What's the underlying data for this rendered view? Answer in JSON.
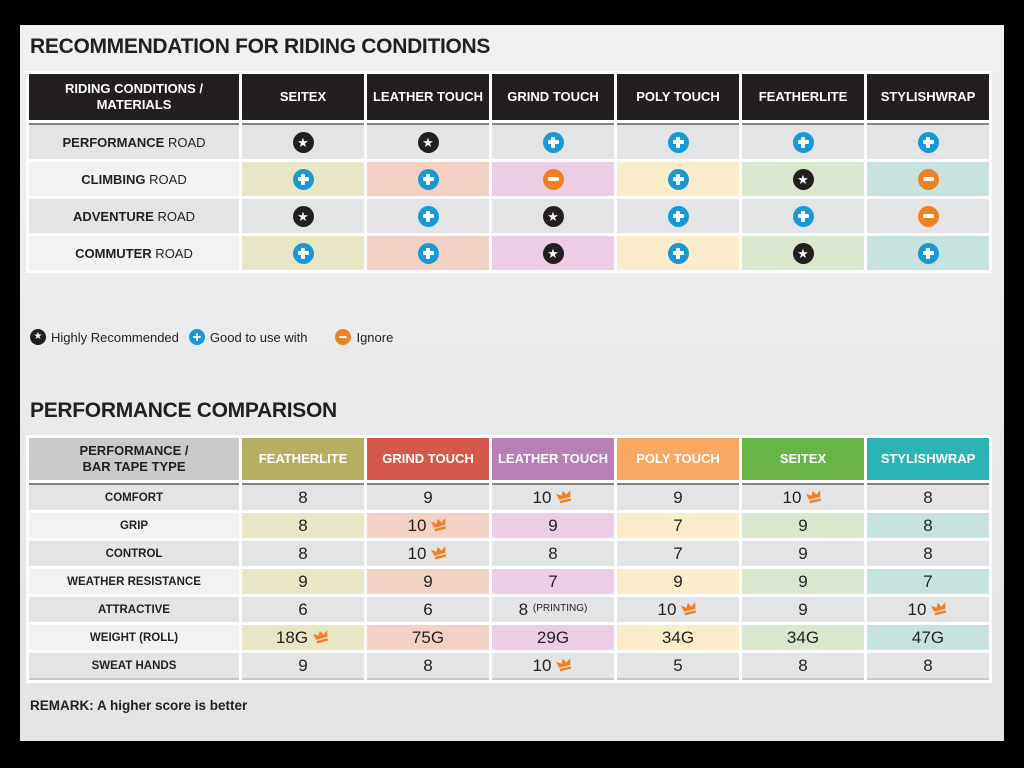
{
  "colors": {
    "accent_blue": "#1899d6",
    "accent_orange": "#ee8123",
    "header_black": "#231f20",
    "header_gray": "#c9cacc",
    "row_gray": "#e3e4e6",
    "label_light": "#f2f2f4",
    "column_headers": [
      "#b5b061",
      "#d5594a",
      "#b77eb7",
      "#f7a964",
      "#68b447",
      "#2cb3b3"
    ],
    "column_cells": [
      "#e8e6c5",
      "#f4d1c5",
      "#eccde5",
      "#fcedca",
      "#d8e7cd",
      "#c7e2df"
    ]
  },
  "recommendation": {
    "title": "RECOMMENDATION FOR RIDING CONDITIONS",
    "corner_line1": "RIDING CONDITIONS /",
    "corner_line2": "MATERIALS",
    "columns": [
      "SEITEX",
      "LEATHER TOUCH",
      "GRIND TOUCH",
      "POLY TOUCH",
      "FEATHERLITE",
      "STYLISHWRAP"
    ],
    "rows": [
      {
        "label_bold": "PERFORMANCE",
        "label_rest": "ROAD",
        "cells": [
          "star",
          "star",
          "plus",
          "plus",
          "plus",
          "plus"
        ]
      },
      {
        "label_bold": "CLIMBING",
        "label_rest": "ROAD",
        "cells": [
          "plus",
          "plus",
          "minus",
          "plus",
          "star",
          "minus"
        ]
      },
      {
        "label_bold": "ADVENTURE",
        "label_rest": "ROAD",
        "cells": [
          "star",
          "plus",
          "star",
          "plus",
          "plus",
          "minus"
        ]
      },
      {
        "label_bold": "COMMUTER",
        "label_rest": "ROAD",
        "cells": [
          "plus",
          "plus",
          "star",
          "plus",
          "star",
          "plus"
        ]
      }
    ],
    "legend": [
      {
        "icon": "star",
        "label": "Highly Recommended"
      },
      {
        "icon": "plus",
        "label": "Good to use with"
      },
      {
        "icon": "minus",
        "label": "Ignore"
      }
    ]
  },
  "comparison": {
    "title": "PERFORMANCE COMPARISON",
    "corner_line1": "PERFORMANCE /",
    "corner_line2": "BAR TAPE TYPE",
    "columns": [
      "FEATHERLITE",
      "GRIND TOUCH",
      "LEATHER TOUCH",
      "POLY TOUCH",
      "SEITEX",
      "STYLISHWRAP"
    ],
    "rows": [
      {
        "label": "COMFORT",
        "cells": [
          {
            "v": "8"
          },
          {
            "v": "9"
          },
          {
            "v": "10",
            "crown": true
          },
          {
            "v": "9"
          },
          {
            "v": "10",
            "crown": true
          },
          {
            "v": "8"
          }
        ]
      },
      {
        "label": "GRIP",
        "cells": [
          {
            "v": "8"
          },
          {
            "v": "10",
            "crown": true
          },
          {
            "v": "9"
          },
          {
            "v": "7"
          },
          {
            "v": "9"
          },
          {
            "v": "8"
          }
        ]
      },
      {
        "label": "CONTROL",
        "cells": [
          {
            "v": "8"
          },
          {
            "v": "10",
            "crown": true
          },
          {
            "v": "8"
          },
          {
            "v": "7"
          },
          {
            "v": "9"
          },
          {
            "v": "8"
          }
        ]
      },
      {
        "label": "WEATHER RESISTANCE",
        "cells": [
          {
            "v": "9"
          },
          {
            "v": "9"
          },
          {
            "v": "7"
          },
          {
            "v": "9"
          },
          {
            "v": "9"
          },
          {
            "v": "7"
          }
        ]
      },
      {
        "label": "ATTRACTIVE",
        "cells": [
          {
            "v": "6"
          },
          {
            "v": "6"
          },
          {
            "v": "8",
            "note": "(PRINTING)"
          },
          {
            "v": "10",
            "crown": true
          },
          {
            "v": "9"
          },
          {
            "v": "10",
            "crown": true
          }
        ]
      },
      {
        "label": "WEIGHT (ROLL)",
        "cells": [
          {
            "v": "18G",
            "crown": true
          },
          {
            "v": "75G"
          },
          {
            "v": "29G"
          },
          {
            "v": "34G"
          },
          {
            "v": "34G"
          },
          {
            "v": "47G"
          }
        ]
      },
      {
        "label": "SWEAT HANDS",
        "cells": [
          {
            "v": "9"
          },
          {
            "v": "8"
          },
          {
            "v": "10",
            "crown": true
          },
          {
            "v": "5"
          },
          {
            "v": "8"
          },
          {
            "v": "8"
          }
        ]
      }
    ],
    "remark": "REMARK: A higher score is better"
  },
  "chart_data": [
    {
      "type": "table",
      "title": "RECOMMENDATION FOR RIDING CONDITIONS",
      "columns": [
        "RIDING CONDITIONS / MATERIALS",
        "SEITEX",
        "LEATHER TOUCH",
        "GRIND TOUCH",
        "POLY TOUCH",
        "FEATHERLITE",
        "STYLISHWRAP"
      ],
      "rows": [
        [
          "PERFORMANCE ROAD",
          "highly-recommended",
          "highly-recommended",
          "good-to-use-with",
          "good-to-use-with",
          "good-to-use-with",
          "good-to-use-with"
        ],
        [
          "CLIMBING ROAD",
          "good-to-use-with",
          "good-to-use-with",
          "ignore",
          "good-to-use-with",
          "highly-recommended",
          "ignore"
        ],
        [
          "ADVENTURE ROAD",
          "highly-recommended",
          "good-to-use-with",
          "highly-recommended",
          "good-to-use-with",
          "good-to-use-with",
          "ignore"
        ],
        [
          "COMMUTER ROAD",
          "good-to-use-with",
          "good-to-use-with",
          "highly-recommended",
          "good-to-use-with",
          "highly-recommended",
          "good-to-use-with"
        ]
      ],
      "legend": [
        "star = Highly Recommended",
        "plus = Good to use with",
        "minus = Ignore"
      ]
    },
    {
      "type": "table",
      "title": "PERFORMANCE COMPARISON",
      "columns": [
        "PERFORMANCE / BAR TAPE TYPE",
        "FEATHERLITE",
        "GRIND TOUCH",
        "LEATHER TOUCH",
        "POLY TOUCH",
        "SEITEX",
        "STYLISHWRAP"
      ],
      "rows": [
        [
          "COMFORT",
          "8",
          "9",
          "10 (best)",
          "9",
          "10 (best)",
          "8"
        ],
        [
          "GRIP",
          "8",
          "10 (best)",
          "9",
          "7",
          "9",
          "8"
        ],
        [
          "CONTROL",
          "8",
          "10 (best)",
          "8",
          "7",
          "9",
          "8"
        ],
        [
          "WEATHER RESISTANCE",
          "9",
          "9",
          "7",
          "9",
          "9",
          "7"
        ],
        [
          "ATTRACTIVE",
          "6",
          "6",
          "8 (PRINTING)",
          "10 (best)",
          "9",
          "10 (best)"
        ],
        [
          "WEIGHT (ROLL)",
          "18G (best)",
          "75G",
          "29G",
          "34G",
          "34G",
          "47G"
        ],
        [
          "SWEAT HANDS",
          "9",
          "8",
          "10 (best)",
          "5",
          "8",
          "8"
        ]
      ],
      "remark": "REMARK: A higher score is better"
    }
  ]
}
